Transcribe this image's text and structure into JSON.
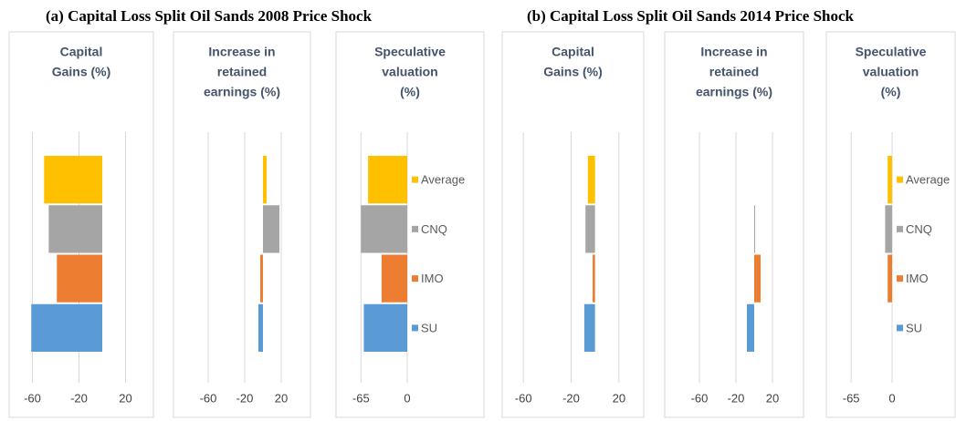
{
  "figure_titles": [
    "(a)   Capital Loss Split Oil Sands 2008 Price Shock",
    "(b) Capital Loss Split Oil Sands 2014 Price Shock"
  ],
  "chart_data": [
    {
      "type": "bar",
      "orientation": "horizontal",
      "title": [
        "Capital",
        "Gains (%)"
      ],
      "categories": [
        "Average",
        "CNQ",
        "IMO",
        "SU"
      ],
      "values": [
        -50,
        -46,
        -39,
        -61
      ],
      "colors": [
        "#ffc000",
        "#a5a5a5",
        "#ed7d31",
        "#5b9bd5"
      ],
      "xlim": [
        -80,
        40
      ],
      "xticks": [
        -60,
        -20,
        20
      ],
      "grid": true,
      "legend": false
    },
    {
      "type": "bar",
      "orientation": "horizontal",
      "title": [
        "Increase in",
        "retained",
        "earnings (%)"
      ],
      "categories": [
        "Average",
        "CNQ",
        "IMO",
        "SU"
      ],
      "values": [
        4,
        18,
        -3,
        -5
      ],
      "colors": [
        "#ffc000",
        "#a5a5a5",
        "#ed7d31",
        "#5b9bd5"
      ],
      "xlim": [
        -100,
        50
      ],
      "xticks": [
        -60,
        -20,
        20
      ],
      "grid": true,
      "legend": false
    },
    {
      "type": "bar",
      "orientation": "horizontal",
      "title": [
        "Speculative",
        "valuation",
        "(%)"
      ],
      "categories": [
        "Average",
        "CNQ",
        "IMO",
        "SU"
      ],
      "values": [
        -55,
        -65,
        -36,
        -61
      ],
      "colors": [
        "#ffc000",
        "#a5a5a5",
        "#ed7d31",
        "#5b9bd5"
      ],
      "xlim": [
        -100,
        0
      ],
      "xticks": [
        -65,
        0
      ],
      "grid": true,
      "legend": true
    },
    {
      "type": "bar",
      "orientation": "horizontal",
      "title": [
        "Capital",
        "Gains (%)"
      ],
      "categories": [
        "Average",
        "CNQ",
        "IMO",
        "SU"
      ],
      "values": [
        -6,
        -8,
        -2,
        -9
      ],
      "colors": [
        "#ffc000",
        "#a5a5a5",
        "#ed7d31",
        "#5b9bd5"
      ],
      "xlim": [
        -80,
        40
      ],
      "xticks": [
        -60,
        -20,
        20
      ],
      "grid": true,
      "legend": false
    },
    {
      "type": "bar",
      "orientation": "horizontal",
      "title": [
        "Increase in",
        "retained",
        "earnings (%)"
      ],
      "categories": [
        "Average",
        "CNQ",
        "IMO",
        "SU"
      ],
      "values": [
        0,
        1,
        7,
        -8
      ],
      "colors": [
        "#ffc000",
        "#a5a5a5",
        "#ed7d31",
        "#5b9bd5"
      ],
      "xlim": [
        -100,
        50
      ],
      "xticks": [
        -60,
        -20,
        20
      ],
      "grid": true,
      "legend": false
    },
    {
      "type": "bar",
      "orientation": "horizontal",
      "title": [
        "Speculative",
        "valuation",
        "(%)"
      ],
      "categories": [
        "Average",
        "CNQ",
        "IMO",
        "SU"
      ],
      "values": [
        -7,
        -11,
        -7,
        0
      ],
      "colors": [
        "#ffc000",
        "#a5a5a5",
        "#ed7d31",
        "#5b9bd5"
      ],
      "xlim": [
        -100,
        0
      ],
      "xticks": [
        -65,
        0
      ],
      "grid": true,
      "legend": true
    }
  ]
}
